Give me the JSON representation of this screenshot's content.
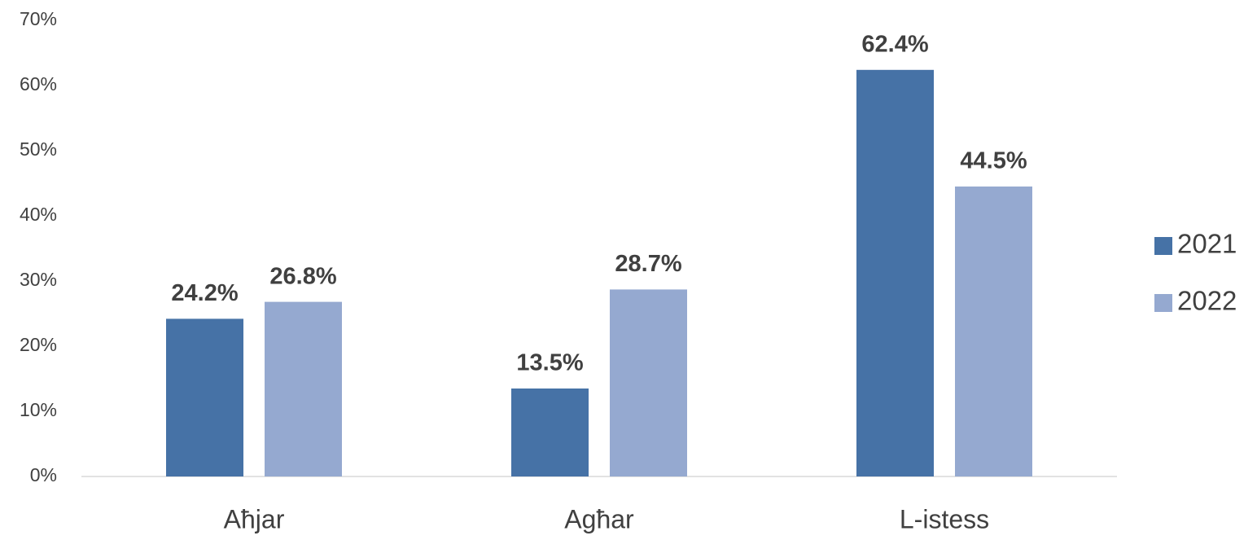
{
  "chart_data": {
    "type": "bar",
    "categories": [
      "Aħjar",
      "Agħar",
      "L-istess"
    ],
    "series": [
      {
        "name": "2021",
        "color": "#4672a6",
        "values": [
          24.2,
          13.5,
          62.4
        ],
        "value_labels": [
          "24.2%",
          "13.5%",
          "62.4%"
        ]
      },
      {
        "name": "2022",
        "color": "#95a9d0",
        "values": [
          26.8,
          28.7,
          44.5
        ],
        "value_labels": [
          "26.8%",
          "28.7%",
          "44.5%"
        ]
      }
    ],
    "ylim": [
      0,
      70
    ],
    "yticks": [
      {
        "value": 0,
        "label": "0%"
      },
      {
        "value": 10,
        "label": "10%"
      },
      {
        "value": 20,
        "label": "20%"
      },
      {
        "value": 30,
        "label": "30%"
      },
      {
        "value": 40,
        "label": "40%"
      },
      {
        "value": 50,
        "label": "50%"
      },
      {
        "value": 60,
        "label": "60%"
      },
      {
        "value": 70,
        "label": "70%"
      }
    ],
    "grid": false,
    "legend": "right"
  }
}
